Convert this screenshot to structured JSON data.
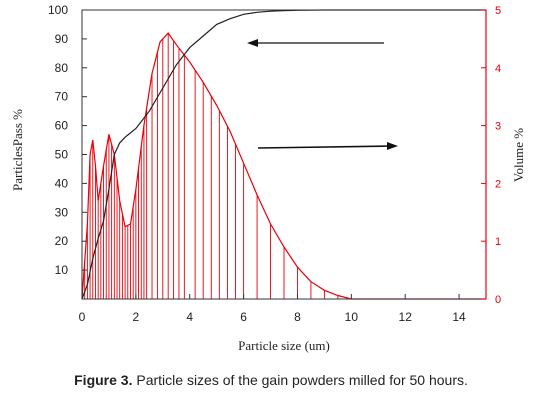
{
  "chart_data": {
    "type": "line",
    "title": "",
    "xlabel": "Particle size (um)",
    "ylabel_left": "ParticlesPass %",
    "ylabel_right": "Volume %",
    "xlim": [
      0,
      15
    ],
    "ylim_left": [
      0,
      100
    ],
    "ylim_right": [
      0,
      5
    ],
    "x_ticks": [
      "0",
      "2",
      "4",
      "6",
      "8",
      "10",
      "12",
      "14"
    ],
    "y_ticks_left": [
      "10",
      "20",
      "30",
      "40",
      "50",
      "60",
      "70",
      "80",
      "90",
      "100"
    ],
    "y_ticks_right": [
      "0",
      "1",
      "2",
      "3",
      "4",
      "5"
    ],
    "grid": false,
    "series": [
      {
        "axis": "left",
        "color": "#222222",
        "x": [
          0,
          0.2,
          0.4,
          0.6,
          0.8,
          1.0,
          1.2,
          1.4,
          1.6,
          2.0,
          2.5,
          3.0,
          3.5,
          4.0,
          4.5,
          5.0,
          5.5,
          6.0,
          6.5,
          7.0,
          7.5,
          8.0,
          9.0,
          10.0,
          11.0,
          12.0,
          13.0,
          14.0,
          15.0
        ],
        "values": [
          0,
          5,
          14,
          21,
          27,
          38,
          50,
          54,
          56,
          59,
          65,
          73,
          81,
          87,
          91,
          95,
          97,
          98.5,
          99.2,
          99.6,
          99.8,
          99.9,
          100,
          100,
          100,
          100,
          100,
          100,
          100
        ]
      },
      {
        "axis": "right",
        "color": "#e8000b",
        "x": [
          0,
          0.2,
          0.3,
          0.4,
          0.5,
          0.6,
          0.8,
          1.0,
          1.2,
          1.4,
          1.6,
          1.8,
          2.0,
          2.3,
          2.6,
          2.9,
          3.2,
          3.5,
          4.0,
          4.5,
          5.0,
          5.5,
          6.0,
          6.5,
          7.0,
          7.5,
          8.0,
          8.5,
          9.0,
          9.5,
          10.0,
          11.0,
          12.0,
          13.0,
          14.0,
          15.0
        ],
        "values": [
          0,
          1.3,
          2.5,
          2.75,
          2.3,
          1.7,
          2.3,
          2.85,
          2.5,
          1.7,
          1.25,
          1.3,
          1.9,
          3.0,
          3.9,
          4.45,
          4.6,
          4.4,
          4.1,
          3.75,
          3.35,
          2.9,
          2.35,
          1.8,
          1.3,
          0.9,
          0.55,
          0.3,
          0.15,
          0.06,
          0,
          0,
          0,
          0,
          0,
          0
        ]
      }
    ],
    "annotations": [
      {
        "text": "",
        "direction": "left",
        "points_to": "left-axis curve"
      },
      {
        "text": "",
        "direction": "right",
        "points_to": "right-axis curve"
      }
    ]
  },
  "caption": {
    "label": "Figure 3.",
    "text": "Particle sizes of the gain powders milled for 50 hours."
  }
}
